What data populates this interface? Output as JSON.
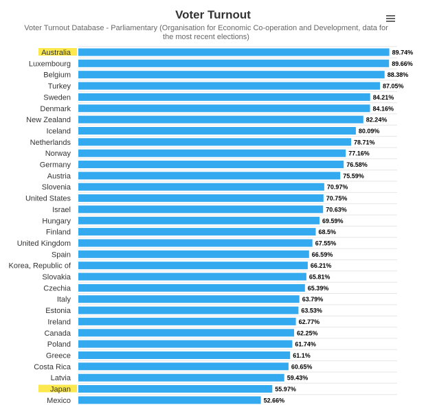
{
  "chart_data": {
    "type": "bar",
    "orientation": "horizontal",
    "title": "Voter Turnout",
    "subtitle": "Voter Turnout Database - Parliamentary (Organisation for Economic Co-operation and Development, data for the most recent elections)",
    "xlabel": "",
    "ylabel": "",
    "xlim": [
      0,
      92
    ],
    "grid": "horizontal",
    "legend": "none",
    "value_suffix": "%",
    "categories": [
      "Australia",
      "Luxembourg",
      "Belgium",
      "Turkey",
      "Sweden",
      "Denmark",
      "New Zealand",
      "Iceland",
      "Netherlands",
      "Norway",
      "Germany",
      "Austria",
      "Slovenia",
      "United States",
      "Israel",
      "Hungary",
      "Finland",
      "United Kingdom",
      "Spain",
      "Korea, Republic of",
      "Slovakia",
      "Czechia",
      "Italy",
      "Estonia",
      "Ireland",
      "Canada",
      "Poland",
      "Greece",
      "Costa Rica",
      "Latvia",
      "Japan",
      "Mexico"
    ],
    "values": [
      89.74,
      89.66,
      88.38,
      87.05,
      84.21,
      84.16,
      82.24,
      80.09,
      78.71,
      77.16,
      76.58,
      75.59,
      70.97,
      70.75,
      70.63,
      69.59,
      68.5,
      67.55,
      66.59,
      66.21,
      65.81,
      65.39,
      63.79,
      63.53,
      62.77,
      62.25,
      61.74,
      61.1,
      60.65,
      59.43,
      55.97,
      52.66
    ],
    "highlighted": [
      "Australia",
      "Japan"
    ],
    "colors": {
      "bar": "#33a9f0",
      "highlight": "#fce94f",
      "grid": "#e6e6e6",
      "label": "#333333"
    }
  },
  "menu_icon": "hamburger-menu-icon"
}
